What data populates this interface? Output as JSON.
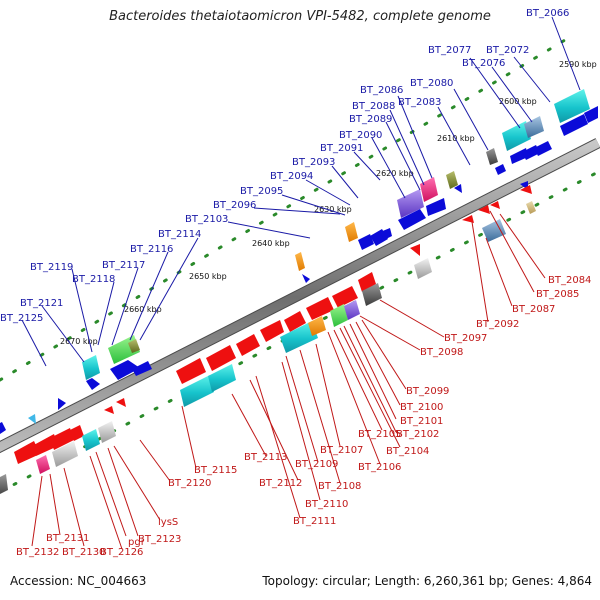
{
  "title": "Bacteroides thetaiotaomicron VPI-5482, complete genome",
  "footer": {
    "accession": "Accession: NC_004663",
    "topology": "Topology: circular; Length: 6,260,361 bp; Genes: 4,864"
  },
  "scale_labels": [
    "2590 kbp",
    "2600 kbp",
    "2610 kbp",
    "2620 kbp",
    "2630 kbp",
    "2640 kbp",
    "2650 kbp",
    "2660 kbp",
    "2670 kbp"
  ],
  "forward_genes": [
    "BT_2066",
    "BT_2072",
    "BT_2076",
    "BT_2077",
    "BT_2080",
    "BT_2083",
    "BT_2086",
    "BT_2088",
    "BT_2089",
    "BT_2090",
    "BT_2091",
    "BT_2093",
    "BT_2094",
    "BT_2095",
    "BT_2096",
    "BT_2103",
    "BT_2114",
    "BT_2116",
    "BT_2117",
    "BT_2118",
    "BT_2119",
    "BT_2121",
    "BT_2125"
  ],
  "reverse_genes": [
    "BT_2084",
    "BT_2085",
    "BT_2087",
    "BT_2092",
    "BT_2097",
    "BT_2098",
    "BT_2099",
    "BT_2100",
    "BT_2101",
    "BT_2102",
    "BT_2104",
    "BT_2105",
    "BT_2106",
    "BT_2107",
    "BT_2108",
    "BT_2109",
    "BT_2110",
    "BT_2111",
    "BT_2112",
    "BT_2113",
    "BT_2115",
    "BT_2120",
    "lysS",
    "BT_2123",
    "pgi",
    "BT_2126",
    "BT_2130",
    "BT_2131",
    "BT_2132"
  ],
  "colors": {
    "forward": "#0b0bd8",
    "reverse": "#ee1010",
    "axis": "#808080",
    "tick": "#2a8a2a",
    "forward_label": "#1a1aa6",
    "reverse_label": "#c01818"
  }
}
